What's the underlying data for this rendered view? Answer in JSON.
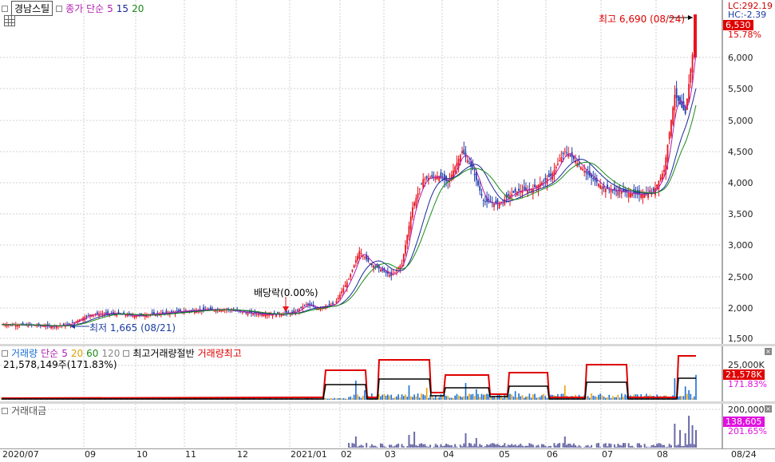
{
  "price_pane": {
    "stock_name": "경남스틸",
    "legend_indicator": "종가 단순",
    "ma_periods": [
      "5",
      "15",
      "20"
    ],
    "lc_label": "LC:292.19",
    "hc_label": "HC:-2.39",
    "current_price": "6,530",
    "change_pct": "15.78%",
    "high_annotation": "최고 6,690 (08/24)",
    "low_annotation": "최저 1,665 (08/21)",
    "dividend_annotation": "배당락(0.00%)",
    "price_scale": [
      "6,000",
      "5,500",
      "5,000",
      "4,500",
      "4,000",
      "3,500",
      "3,000",
      "2,500",
      "2,000",
      "1,500"
    ]
  },
  "volume_pane": {
    "title": "거래량",
    "indicator": "단순",
    "ma_periods": [
      "5",
      "20",
      "60",
      "120"
    ],
    "half_label": "최고거래량절반",
    "max_label": "거래량최고",
    "volume_value": "21,578,149주(171.83%)",
    "scale_label": "25,000K",
    "current_tag": "21,578K",
    "pct_tag": "171.83%"
  },
  "amount_pane": {
    "title": "거래대금",
    "scale_label": "200,000",
    "current_tag": "138,605",
    "pct_tag": "201.65%"
  },
  "x_axis": [
    "2020/07",
    "09",
    "10",
    "11",
    "12",
    "2021/01",
    "02",
    "03",
    "04",
    "05",
    "06",
    "07",
    "08",
    "08/24"
  ],
  "colors": {
    "up": "#e8141e",
    "down": "#1e3caa",
    "ma5": "#b01fb0",
    "ma15": "#1a2a9a",
    "ma20": "#1a8a1a",
    "vol_max": "#e00000",
    "vol_half": "#000000",
    "vol_bar": "#1a6fd6",
    "amount_bar": "#6a6aa8",
    "tag_red": "#e00000",
    "tag_magenta": "#e010e0",
    "tag_purple": "#7a7abb"
  }
}
